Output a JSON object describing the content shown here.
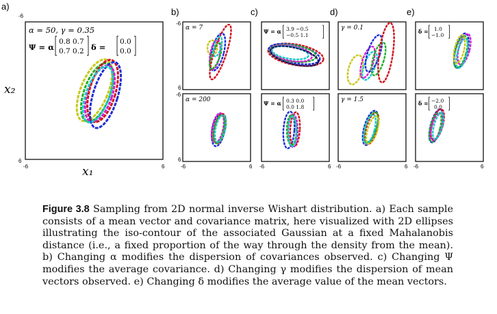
{
  "figure": {
    "panels": [
      {
        "letter": "a)",
        "tick_top": "-6",
        "tick_bottom": "6",
        "tick_left": "-6",
        "tick_right": "6",
        "anno_line1": "α = 50, γ = 0.35",
        "anno_psi": "Ψ = α",
        "anno_psi_matrix": [
          "0.8  0.7",
          "0.7  0.2"
        ],
        "anno_delta": "δ =",
        "anno_delta_vec": [
          "0.0",
          "0.0"
        ],
        "xlabel": "x₁",
        "ylabel": "x₂"
      },
      {
        "letter": "b)",
        "tick_top": "-6",
        "tick_mid_a": "6",
        "tick_mid_b": "-6",
        "tick_bottom": "6",
        "tick_left": "-6",
        "tick_right": "6",
        "top_anno": "α = 7",
        "bottom_anno": "α = 200"
      },
      {
        "letter": "c)",
        "tick_left": "-6",
        "tick_right": "6",
        "top_anno": "Ψ = α",
        "top_matrix": [
          "3.9   −0.5",
          "−0.5   1.1"
        ],
        "bottom_anno": "Ψ = α",
        "bottom_matrix": [
          "0.3  0.0",
          "0.0  1.8"
        ]
      },
      {
        "letter": "d)",
        "tick_left": "-6",
        "tick_right": "6",
        "top_anno": "γ = 0.1",
        "bottom_anno": "γ = 1.5"
      },
      {
        "letter": "e)",
        "tick_left": "-6",
        "tick_right": "6",
        "top_anno": "δ =",
        "top_vec": [
          "1.0",
          "−1.0"
        ],
        "bottom_anno": "δ =",
        "bottom_vec": [
          "−2.0",
          "0.0"
        ]
      }
    ],
    "colors": {
      "blue": "#1f2fd6",
      "red": "#d0141c",
      "green": "#22b02a",
      "magenta": "#d21fd0",
      "cyan": "#1fc9c9",
      "yellow": "#c8c81a",
      "navy": "#15155e"
    }
  },
  "caption": {
    "label": "Figure 3.8",
    "text": " Sampling from 2D normal inverse Wishart distribution. a) Each sample consists of a mean vector and covariance matrix, here visualized with 2D ellipses illustrating the iso-contour of the associated Gaussian at a fixed Mahalanobis distance (i.e., a fixed proportion of the way through the density from the mean). b) Changing α modifies the dispersion of covariances observed. c) Changing Ψ modifies the average covariance. d) Changing γ modifies the dispersion of mean vectors observed. e) Changing δ modifies the average value of the mean vectors."
  }
}
